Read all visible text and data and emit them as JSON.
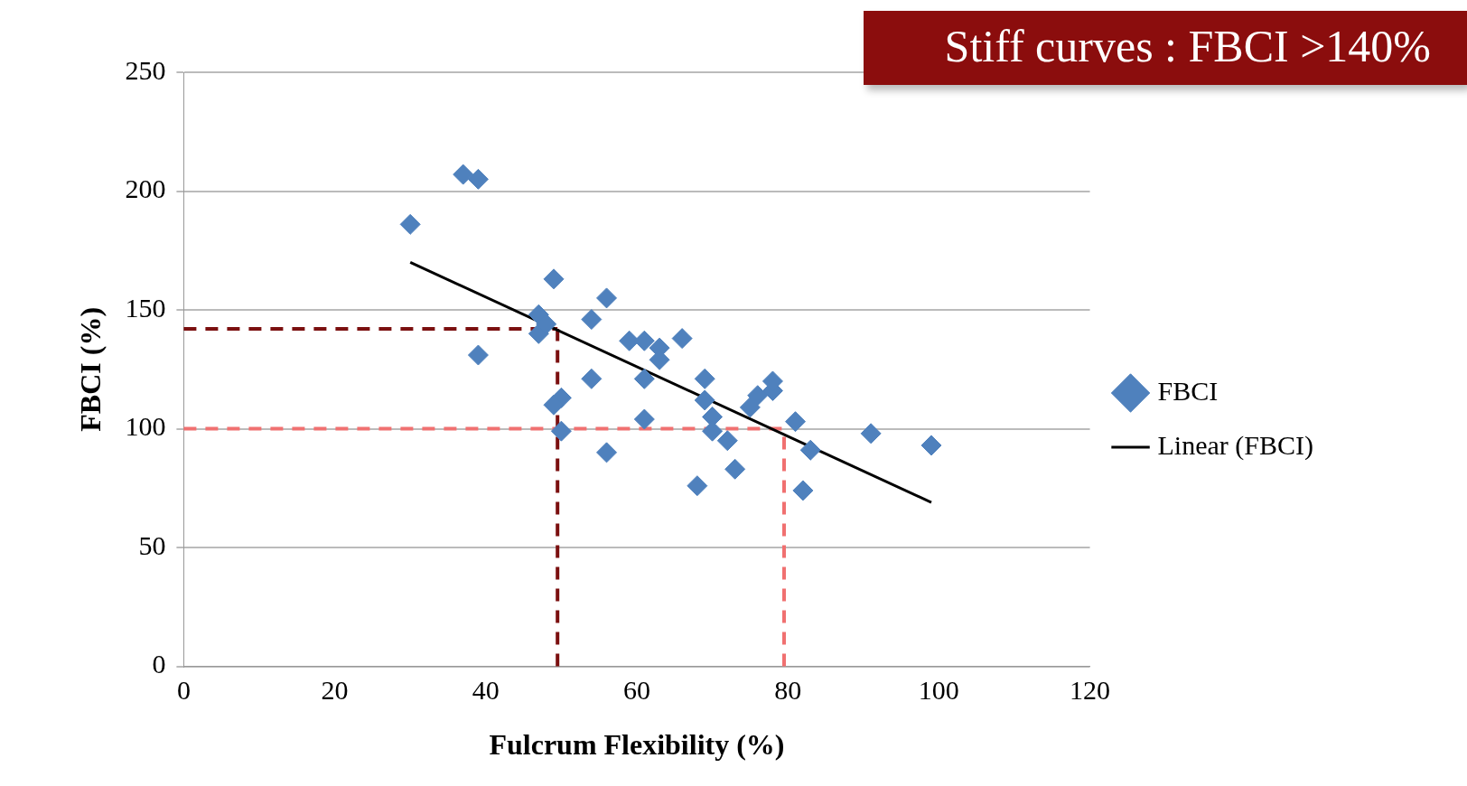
{
  "chart_data": {
    "type": "scatter",
    "title": "Stiff curves : FBCI >140%",
    "xlabel": "Fulcrum Flexibility (%)",
    "ylabel": "FBCI (%)",
    "xlim": [
      0,
      120
    ],
    "xticks": [
      0,
      20,
      40,
      60,
      80,
      100,
      120
    ],
    "ylim": [
      0,
      250
    ],
    "yticks": [
      0,
      50,
      100,
      150,
      200,
      250
    ],
    "grid": "y",
    "legend": "right",
    "marker": "diamond",
    "series": [
      {
        "name": "FBCI",
        "color": "#4f81bd",
        "x": [
          30,
          37,
          39,
          39,
          49,
          47,
          47,
          48,
          54,
          56,
          54,
          50,
          49,
          50,
          56,
          59,
          61,
          61,
          61,
          63,
          63,
          66,
          68,
          69,
          69,
          70,
          70,
          72,
          73,
          75,
          76,
          78,
          78,
          81,
          83,
          82,
          91,
          99
        ],
        "values": [
          186,
          207,
          205,
          131,
          163,
          148,
          140,
          144,
          146,
          155,
          121,
          113,
          110,
          99,
          90,
          137,
          137,
          121,
          104,
          134,
          129,
          138,
          76,
          121,
          112,
          105,
          99,
          95,
          83,
          109,
          114,
          116,
          120,
          103,
          91,
          74,
          98,
          93
        ]
      },
      {
        "name": "Linear (FBCI)",
        "type": "line",
        "color": "#000000",
        "marker": "none",
        "line_style": "solid",
        "x": [
          30,
          99
        ],
        "values": [
          170,
          69
        ]
      }
    ],
    "ref_lines": [
      {
        "axis": "y",
        "value": 142,
        "color": "#7b1010",
        "line_style": "dashed"
      },
      {
        "axis": "x",
        "value": 49.5,
        "color": "#7b1010",
        "line_style": "dashed"
      },
      {
        "axis": "y",
        "value": 100,
        "color": "#f07070",
        "line_style": "dashed"
      },
      {
        "axis": "x",
        "value": 79.5,
        "color": "#f07070",
        "line_style": "dashed"
      }
    ]
  }
}
